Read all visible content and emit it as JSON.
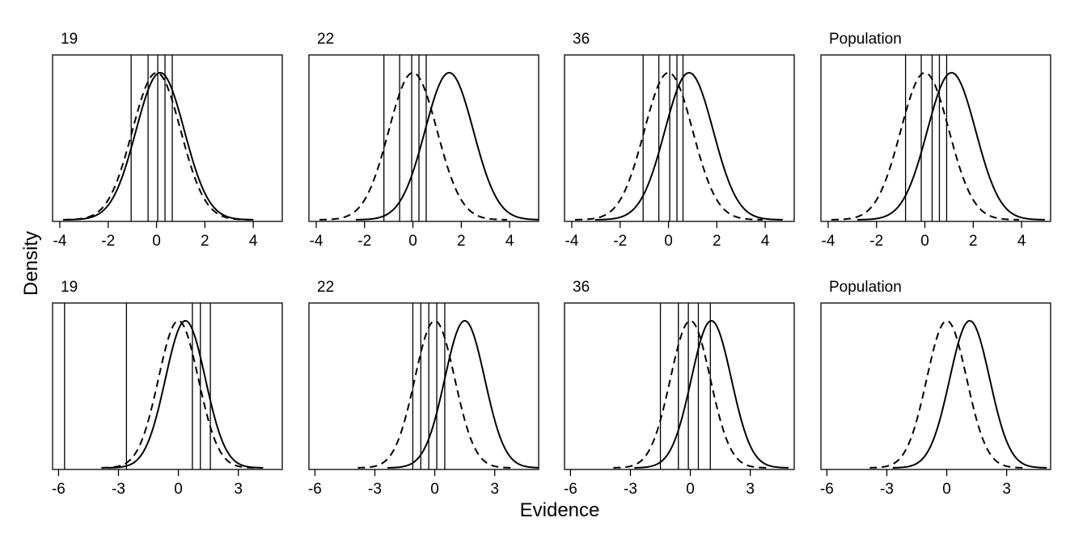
{
  "figure": {
    "xlabel": "Evidence",
    "ylabel": "Density"
  },
  "chart_data": [
    {
      "type": "line",
      "title": "19",
      "xlim": [
        -4.3,
        5.2
      ],
      "xticks": [
        -4,
        -2,
        0,
        2,
        4
      ],
      "xtick_labels": [
        "-4",
        "-2",
        "0",
        "2",
        "4"
      ],
      "noise_curve": {
        "style": "dashed",
        "mean": 0,
        "sd": 1
      },
      "signal_curve": {
        "style": "solid",
        "mean": 0.15,
        "sd": 1
      },
      "criteria": [
        -1.05,
        -0.35,
        0.05,
        0.35,
        0.65
      ]
    },
    {
      "type": "line",
      "title": "22",
      "xlim": [
        -4.3,
        5.2
      ],
      "xticks": [
        -4,
        -2,
        0,
        2,
        4
      ],
      "xtick_labels": [
        "-4",
        "-2",
        "0",
        "2",
        "4"
      ],
      "noise_curve": {
        "style": "dashed",
        "mean": 0,
        "sd": 1
      },
      "signal_curve": {
        "style": "solid",
        "mean": 1.5,
        "sd": 1
      },
      "criteria": [
        -1.2,
        -0.55,
        -0.05,
        0.25,
        0.55
      ]
    },
    {
      "type": "line",
      "title": "36",
      "xlim": [
        -4.3,
        5.2
      ],
      "xticks": [
        -4,
        -2,
        0,
        2,
        4
      ],
      "xtick_labels": [
        "-4",
        "-2",
        "0",
        "2",
        "4"
      ],
      "noise_curve": {
        "style": "dashed",
        "mean": 0,
        "sd": 1
      },
      "signal_curve": {
        "style": "solid",
        "mean": 0.85,
        "sd": 1
      },
      "criteria": [
        -1.05,
        -0.4,
        0.05,
        0.35,
        0.6
      ]
    },
    {
      "type": "line",
      "title": "Population",
      "xlim": [
        -4.3,
        5.2
      ],
      "xticks": [
        -4,
        -2,
        0,
        2,
        4
      ],
      "xtick_labels": [
        "-4",
        "-2",
        "0",
        "2",
        "4"
      ],
      "noise_curve": {
        "style": "dashed",
        "mean": 0,
        "sd": 1
      },
      "signal_curve": {
        "style": "solid",
        "mean": 1.1,
        "sd": 1
      },
      "criteria": [
        -0.8,
        -0.15,
        0.3,
        0.6,
        0.9
      ]
    },
    {
      "type": "line",
      "title": "19",
      "xlim": [
        -6.3,
        5.2
      ],
      "xticks": [
        -6,
        -3,
        0,
        3
      ],
      "xtick_labels": [
        "-6",
        "-3",
        "0",
        "3"
      ],
      "noise_curve": {
        "style": "dashed",
        "mean": 0,
        "sd": 1
      },
      "signal_curve": {
        "style": "solid",
        "mean": 0.35,
        "sd": 1
      },
      "criteria": [
        -5.7,
        -2.6,
        0.7,
        1.1,
        1.6
      ]
    },
    {
      "type": "line",
      "title": "22",
      "xlim": [
        -6.3,
        5.2
      ],
      "xticks": [
        -6,
        -3,
        0,
        3
      ],
      "xtick_labels": [
        "-6",
        "-3",
        "0",
        "3"
      ],
      "noise_curve": {
        "style": "dashed",
        "mean": 0,
        "sd": 1
      },
      "signal_curve": {
        "style": "solid",
        "mean": 1.5,
        "sd": 1
      },
      "criteria": [
        -1.1,
        -0.7,
        -0.3,
        0.1,
        0.5
      ]
    },
    {
      "type": "line",
      "title": "36",
      "xlim": [
        -6.3,
        5.2
      ],
      "xticks": [
        -6,
        -3,
        0,
        3
      ],
      "xtick_labels": [
        "-6",
        "-3",
        "0",
        "3"
      ],
      "noise_curve": {
        "style": "dashed",
        "mean": 0,
        "sd": 1
      },
      "signal_curve": {
        "style": "solid",
        "mean": 1.05,
        "sd": 1
      },
      "criteria": [
        -1.5,
        -0.6,
        -0.1,
        0.4,
        1.0
      ]
    },
    {
      "type": "line",
      "title": "Population",
      "xlim": [
        -6.3,
        5.2
      ],
      "xticks": [
        -6,
        -3,
        0,
        3
      ],
      "xtick_labels": [
        "-6",
        "-3",
        "0",
        "3"
      ],
      "noise_curve": {
        "style": "dashed",
        "mean": 0,
        "sd": 1
      },
      "signal_curve": {
        "style": "solid",
        "mean": 1.15,
        "sd": 1
      },
      "criteria": []
    }
  ]
}
